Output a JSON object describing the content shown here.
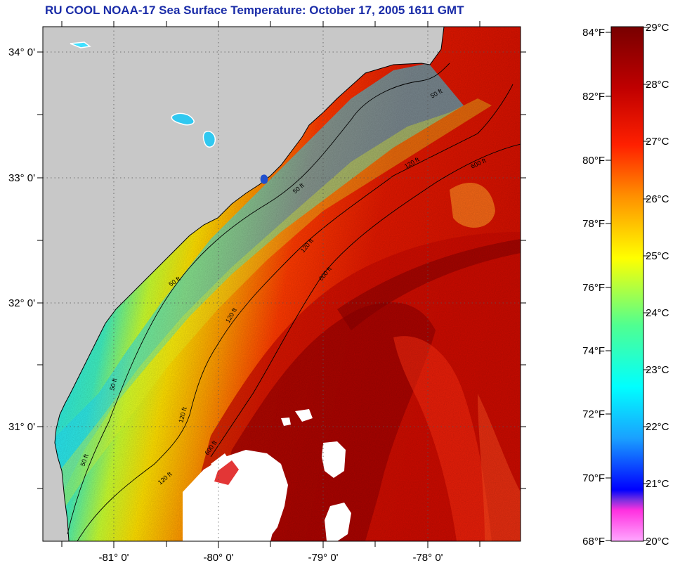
{
  "title": "RU COOL  NOAA-17  Sea Surface Temperature:  October 17, 2005 1611 GMT",
  "map": {
    "lon_labels": [
      "-81° 0'",
      "-80° 0'",
      "-79° 0'",
      "-78° 0'"
    ],
    "lat_labels": [
      "34° 0'",
      "33° 0'",
      "32° 0'",
      "31° 0'"
    ],
    "contours": [
      {
        "id": "c50a",
        "label": "50 ft"
      },
      {
        "id": "c50b",
        "label": "50 ft"
      },
      {
        "id": "c50c",
        "label": "50 ft"
      },
      {
        "id": "c50d",
        "label": "50 ft"
      },
      {
        "id": "c50e",
        "label": "50 ft"
      },
      {
        "id": "c120a",
        "label": "120 ft"
      },
      {
        "id": "c120b",
        "label": "120 ft"
      },
      {
        "id": "c120c",
        "label": "120 ft"
      },
      {
        "id": "c120d",
        "label": "120 ft"
      },
      {
        "id": "c120e",
        "label": "120 ft"
      },
      {
        "id": "c600a",
        "label": "600 ft"
      },
      {
        "id": "c600b",
        "label": "600 ft"
      },
      {
        "id": "c600c",
        "label": "600 ft"
      }
    ]
  },
  "colorbar": {
    "fahrenheit": [
      "84°F",
      "82°F",
      "80°F",
      "78°F",
      "76°F",
      "74°F",
      "72°F",
      "70°F",
      "68°F"
    ],
    "celsius": [
      "29°C",
      "28°C",
      "27°C",
      "26°C",
      "25°C",
      "24°C",
      "23°C",
      "22°C",
      "21°C",
      "20°C"
    ]
  },
  "colors": {
    "land": "#c8c8c8",
    "cloud": "#ffffff",
    "title": "#1a2ca8"
  }
}
